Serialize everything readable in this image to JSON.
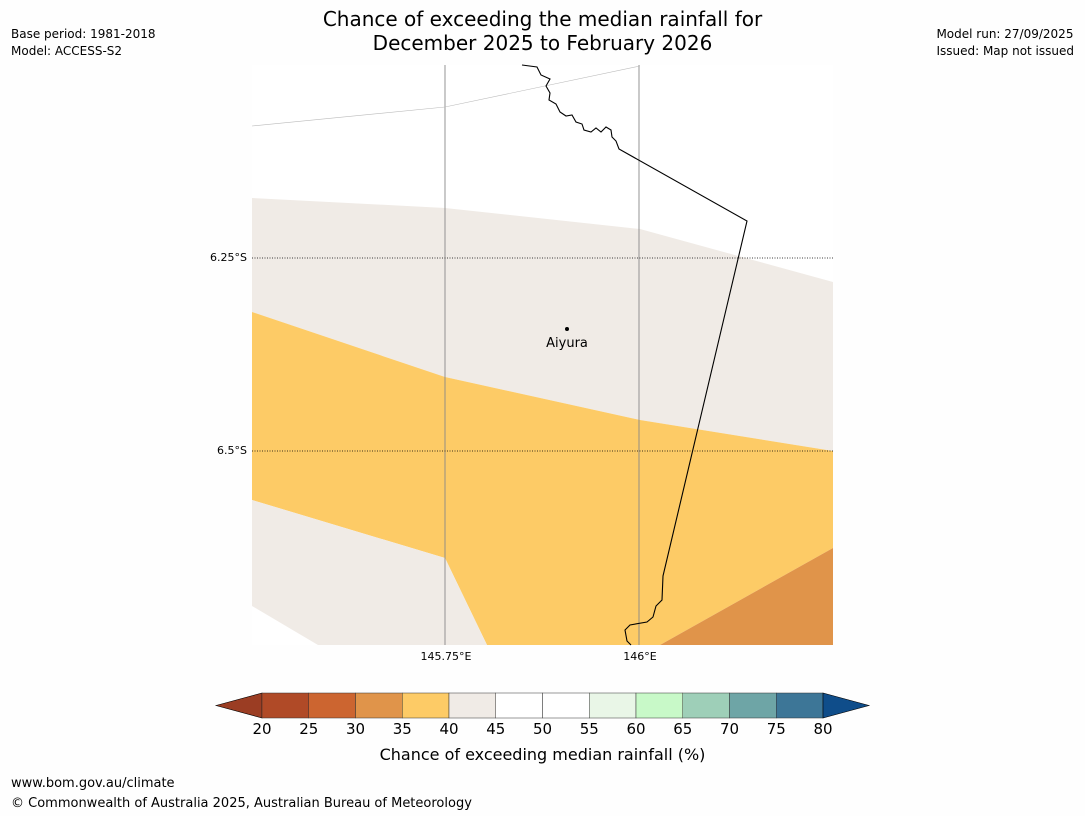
{
  "title": {
    "line1": "Chance of exceeding the median rainfall for",
    "line2": "December 2025 to February 2026"
  },
  "meta_left": {
    "base_period": "Base period: 1981-2018",
    "model": "Model: ACCESS-S2"
  },
  "meta_right": {
    "model_run": "Model run: 27/09/2025",
    "issued": "Issued: Map not issued"
  },
  "map": {
    "lat_labels": [
      "6.25°S",
      "6.5°S"
    ],
    "lon_labels": [
      "145.75°E",
      "146°E"
    ],
    "place": "Aiyura",
    "colors": {
      "below_35_40": "#fdcb66",
      "band_40_45": "#f0ebe6",
      "band_30_35": "#e0944a",
      "border": "#000000",
      "grid": "#888888"
    },
    "regions": [
      {
        "name": "north-white",
        "category": "45-50"
      },
      {
        "name": "middle-light",
        "category": "40-45"
      },
      {
        "name": "yellow-band",
        "category": "35-40"
      },
      {
        "name": "southwest-light",
        "category": "40-45"
      },
      {
        "name": "southeast-orange",
        "category": "30-35"
      }
    ]
  },
  "colorbar": {
    "ticks": [
      "20",
      "25",
      "30",
      "35",
      "40",
      "45",
      "50",
      "55",
      "60",
      "65",
      "70",
      "75",
      "80"
    ],
    "under_color": "#9b3d23",
    "over_color": "#0f4d8a",
    "colors": [
      "#b04a27",
      "#cc6530",
      "#e0944a",
      "#fdcb66",
      "#f0ebe6",
      "#ffffff",
      "#ffffff",
      "#e9f6e7",
      "#c8f9c8",
      "#9ecfb8",
      "#6ea5a6",
      "#3d7697"
    ],
    "label": "Chance of exceeding median rainfall (%)"
  },
  "footer": {
    "url": "www.bom.gov.au/climate",
    "copyright": "© Commonwealth of Australia 2025, Australian Bureau of Meteorology"
  }
}
